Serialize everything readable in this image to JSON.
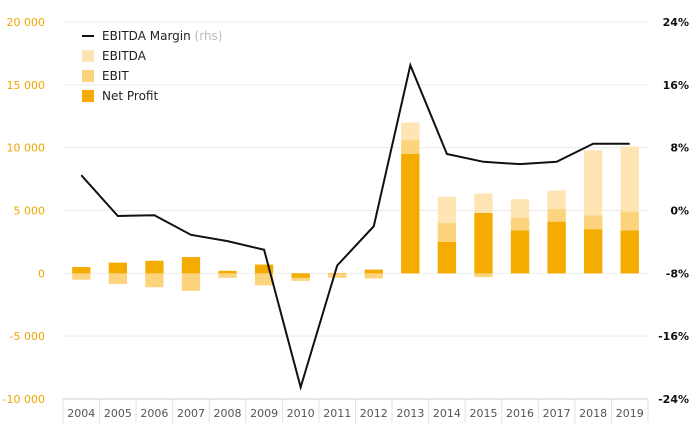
{
  "chart_data": {
    "type": "bar",
    "categories": [
      "2004",
      "2005",
      "2006",
      "2007",
      "2008",
      "2009",
      "2010",
      "2011",
      "2012",
      "2013",
      "2014",
      "2015",
      "2016",
      "2017",
      "2018",
      "2019"
    ],
    "series": [
      {
        "name": "EBITDA",
        "values": [
          -500,
          -850,
          -1100,
          -1400,
          -350,
          -950,
          -600,
          -350,
          -400,
          12000,
          6100,
          6350,
          5900,
          6600,
          9800,
          10100
        ],
        "color": "#fde5b4"
      },
      {
        "name": "EBIT",
        "values": [
          -500,
          -850,
          -1100,
          -1400,
          -350,
          -950,
          -600,
          -350,
          -400,
          10600,
          4000,
          -300,
          4400,
          5100,
          4600,
          4900
        ],
        "color": "#fcd47e"
      },
      {
        "name": "Net Profit",
        "values": [
          500,
          850,
          1000,
          1300,
          200,
          700,
          -350,
          0,
          300,
          9500,
          2500,
          4800,
          3400,
          4100,
          3500,
          3400
        ],
        "color": "#f5ac00"
      }
    ],
    "line_series": {
      "name": "EBITDA Margin",
      "name_suffix": "(rhs)",
      "values": [
        4.5,
        -0.7,
        -0.6,
        -3.1,
        -3.9,
        -5.0,
        -22.5,
        -7.0,
        -2.0,
        18.5,
        7.2,
        6.2,
        5.9,
        6.2,
        8.5,
        8.5
      ],
      "color": "#111111"
    },
    "left_axis": {
      "ylim": [
        -10000,
        20000
      ],
      "ticks": [
        "20 000",
        "15 000",
        "10 000",
        "5 000",
        "0",
        "-5 000",
        "-10 000"
      ],
      "values": [
        20000,
        15000,
        10000,
        5000,
        0,
        -5000,
        -10000
      ]
    },
    "right_axis": {
      "ylim": [
        -24,
        24
      ],
      "ticks": [
        "24%",
        "16%",
        "8%",
        "0%",
        "-8%",
        "-16%",
        "-24%"
      ],
      "values": [
        24,
        16,
        8,
        0,
        -8,
        -16,
        -24
      ]
    },
    "legend": [
      {
        "label": "EBITDA Margin",
        "suffix": "(rhs)",
        "kind": "line"
      },
      {
        "label": "EBITDA",
        "kind": "swatch",
        "color": "#fde5b4"
      },
      {
        "label": "EBIT",
        "kind": "swatch",
        "color": "#fcd47e"
      },
      {
        "label": "Net Profit",
        "kind": "swatch",
        "color": "#f5ac00"
      }
    ],
    "legend_position": "top-left",
    "grid": "horizontal"
  }
}
